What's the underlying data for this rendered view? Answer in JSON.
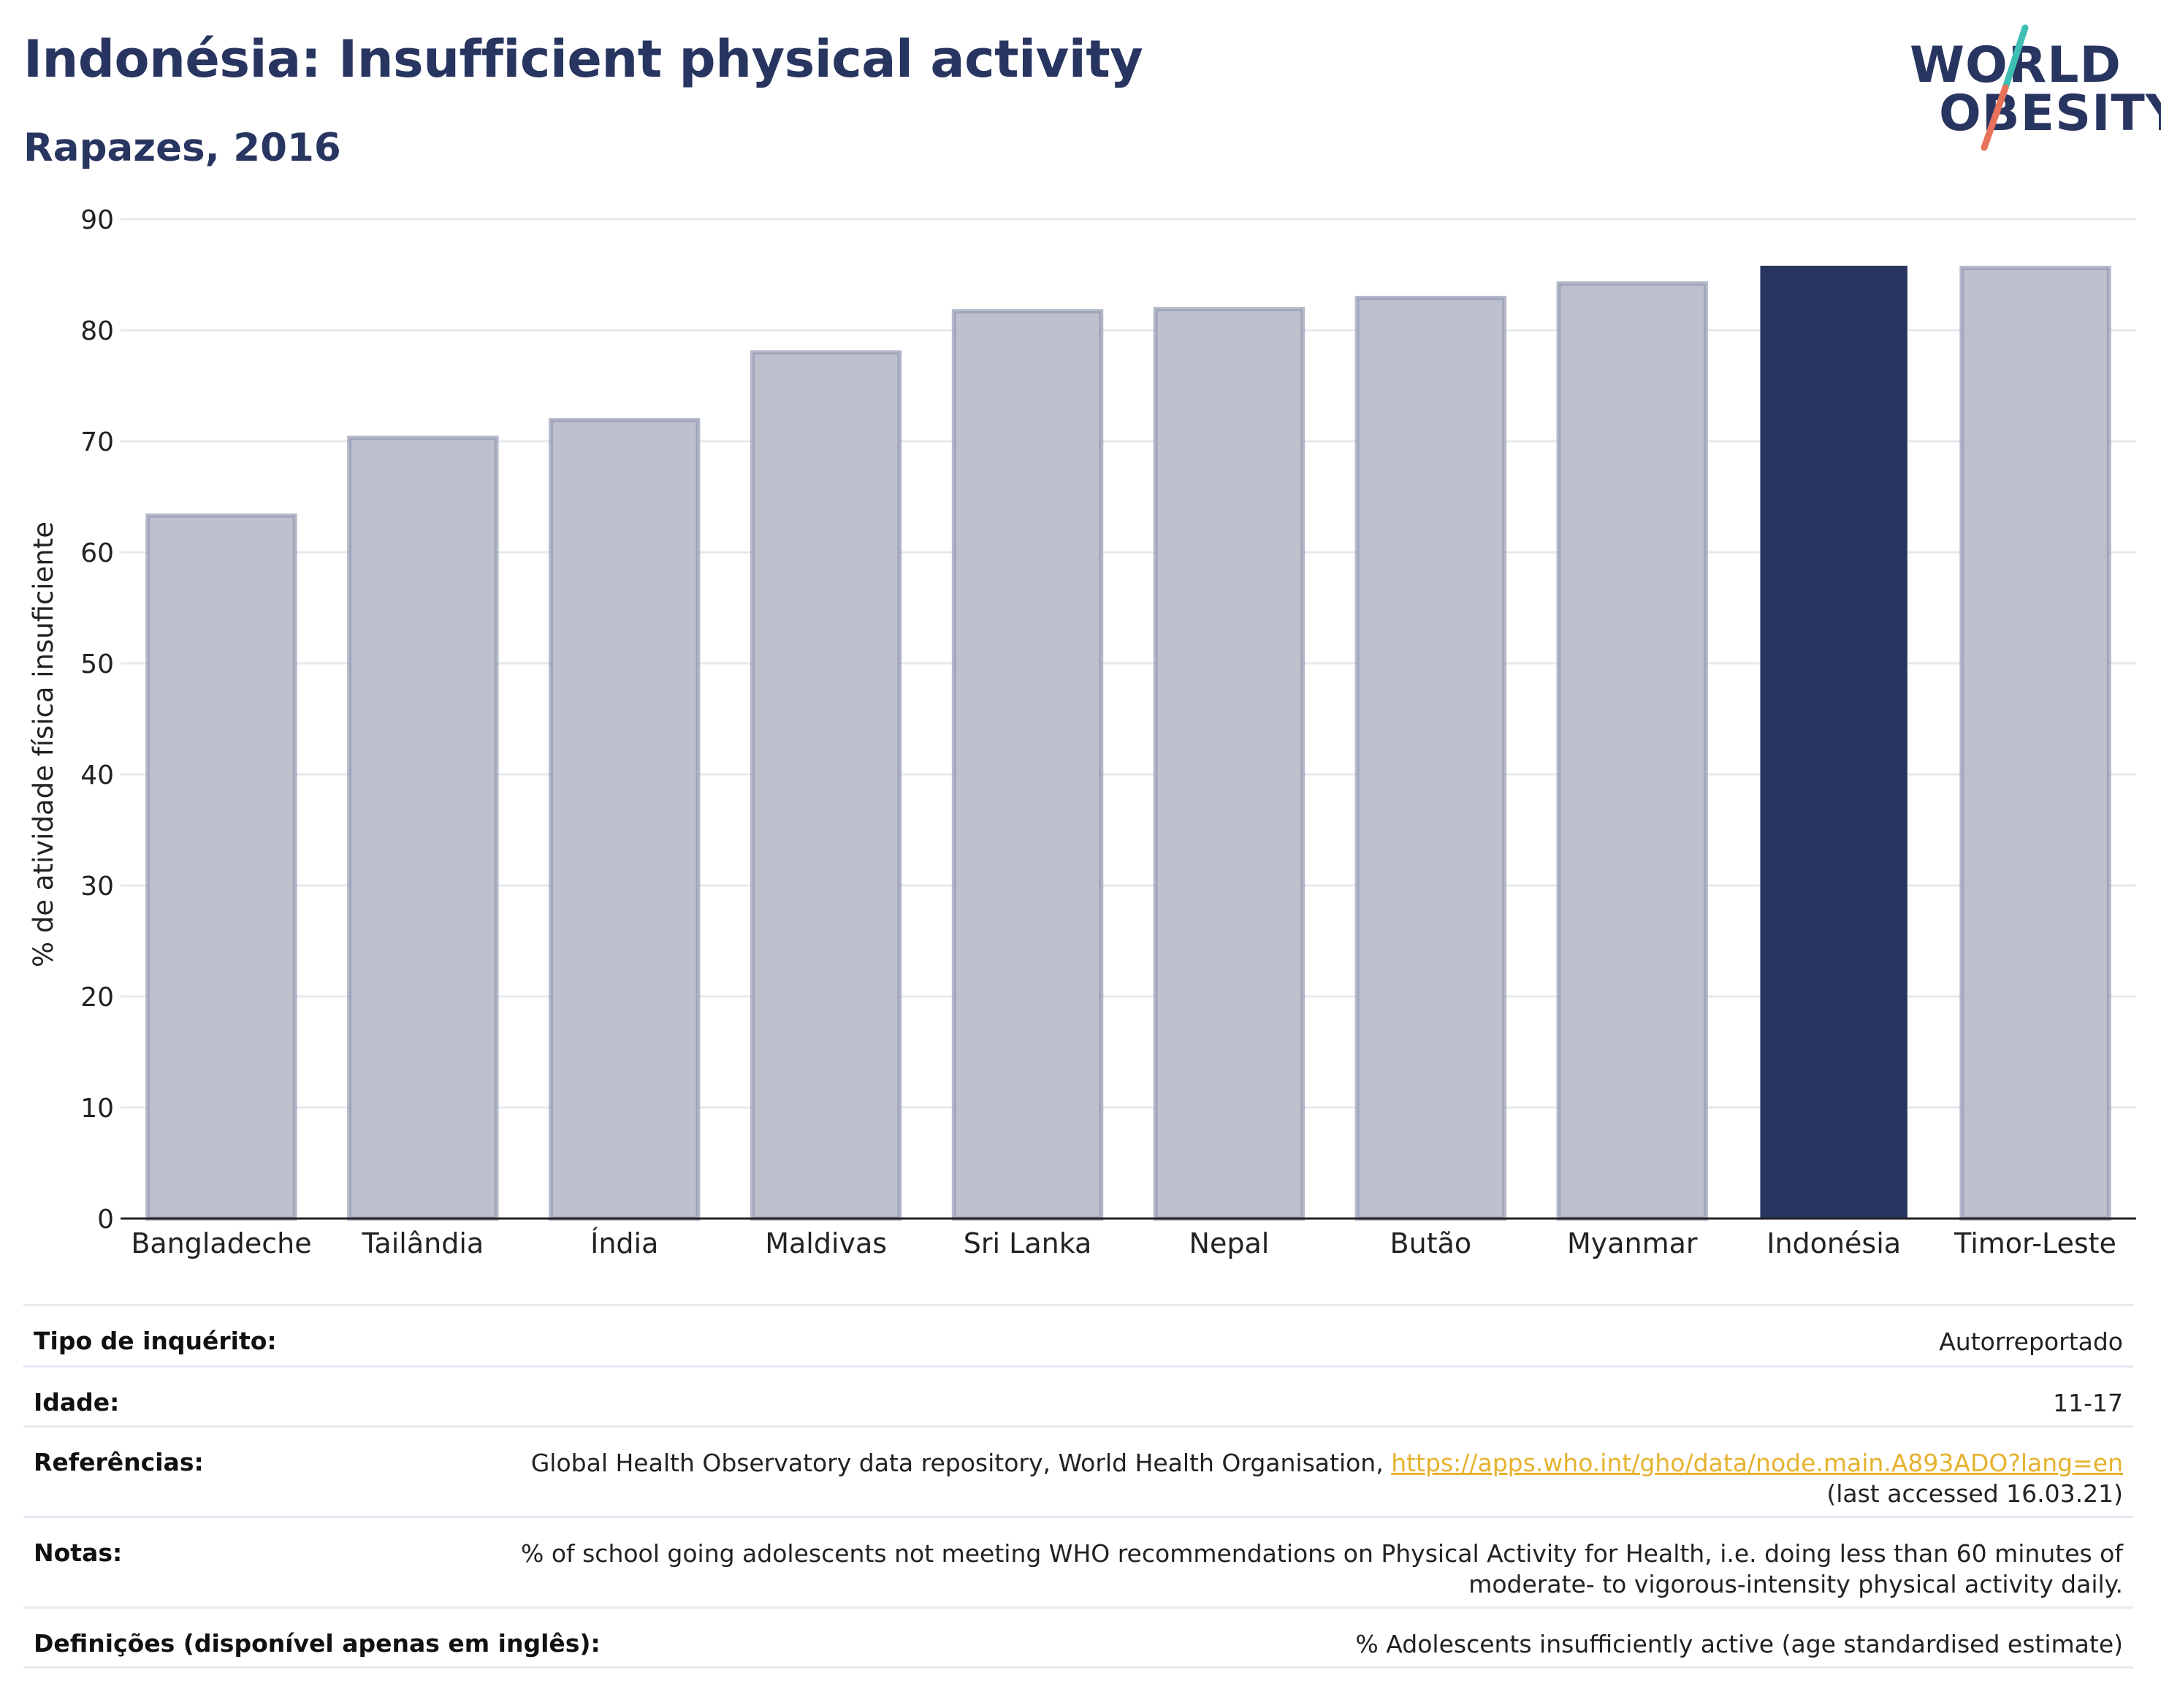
{
  "header": {
    "title": "Indonésia: Insufficient physical activity",
    "subtitle": "Rapazes, 2016"
  },
  "logo": {
    "line1": "WORLD",
    "line2": "OBESITY",
    "text_color": "#283560",
    "slash_colors": [
      "#3fbfb3",
      "#e8735a"
    ]
  },
  "colors": {
    "highlight_bar": "#283560",
    "other_bar_fill": "#bdc1ce",
    "other_bar_border": "#959bb3",
    "gridline": "#e6e8ee",
    "axis": "#222222",
    "link": "#e6b22e"
  },
  "chart_data": {
    "type": "bar",
    "ylabel": "% de atividade física insuficiente",
    "ylim": [
      0,
      90
    ],
    "yticks": [
      0,
      10,
      20,
      30,
      40,
      50,
      60,
      70,
      80,
      90
    ],
    "grid": true,
    "categories": [
      "Bangladeche",
      "Tailândia",
      "Índia",
      "Maldivas",
      "Sri Lanka",
      "Nepal",
      "Butão",
      "Myanmar",
      "Indonésia",
      "Timor-Leste"
    ],
    "values": [
      63.3,
      70.3,
      71.9,
      78.0,
      81.7,
      81.9,
      82.9,
      84.2,
      85.8,
      85.6
    ],
    "highlight": "Indonésia"
  },
  "info_table": {
    "rows": [
      {
        "label": "Tipo de inquérito:",
        "value": "Autorreportado"
      },
      {
        "label": "Idade:",
        "value": "11-17"
      },
      {
        "label": "Referências:",
        "value_prefix": "Global Health Observatory data repository, World Health Organisation, ",
        "link": "https://apps.who.int/gho/data/node.main.A893ADO?lang=en",
        "value_suffix": "(last accessed 16.03.21)"
      },
      {
        "label": "Notas:",
        "value_line1": "% of school going adolescents not meeting WHO recommendations on Physical Activity for Health, i.e. doing less than 60 minutes of",
        "value_line2": "moderate- to vigorous-intensity physical activity daily."
      },
      {
        "label": "Definições (disponível apenas em inglês):",
        "value": "% Adolescents insufficiently active (age standardised estimate)"
      }
    ]
  }
}
